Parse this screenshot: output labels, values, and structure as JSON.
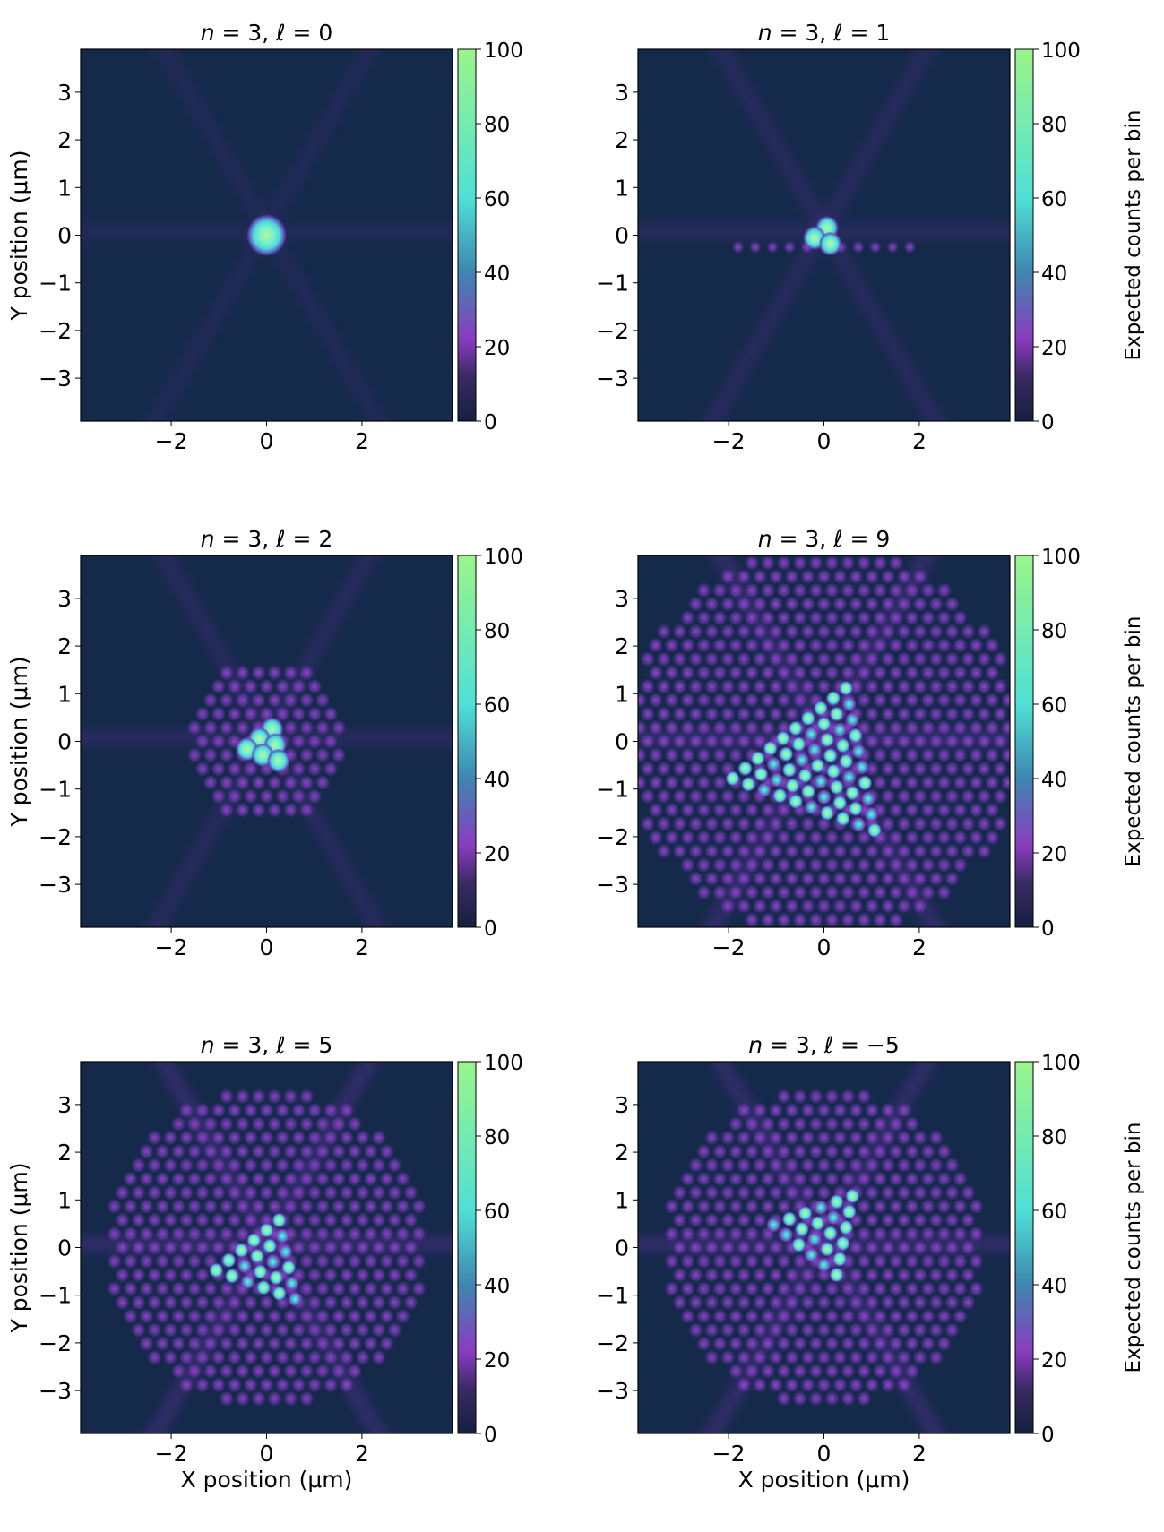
{
  "colors": {
    "background": "#15294a",
    "colorbar_stops": [
      "#14203f",
      "#3a2a63",
      "#8a3cc0",
      "#3e86b0",
      "#4fe0d6",
      "#9af58a"
    ]
  },
  "colorbar": {
    "ticks": [
      "0",
      "20",
      "40",
      "60",
      "80",
      "100"
    ],
    "label": "Expected counts per bin",
    "range": [
      0,
      100
    ]
  },
  "axes": {
    "xlabel": "X position (μm)",
    "ylabel": "Y position (μm)",
    "xticks": [
      "−2",
      "0",
      "2"
    ],
    "yticks": [
      "3",
      "2",
      "1",
      "0",
      "−1",
      "−2",
      "−3"
    ],
    "range": [
      -3.9,
      3.9
    ]
  },
  "chart_data": [
    {
      "type": "heatmap",
      "title_n": "n",
      "title_eq1": " = 3, ",
      "title_l": "ℓ",
      "title_eq2": " = 0",
      "l": 0,
      "xlim": [
        -3.9,
        3.9
      ],
      "ylim": [
        -3.9,
        3.9
      ],
      "clim": [
        0,
        100
      ]
    },
    {
      "type": "heatmap",
      "title_n": "n",
      "title_eq1": " = 3, ",
      "title_l": "ℓ",
      "title_eq2": " = 1",
      "l": 1,
      "xlim": [
        -3.9,
        3.9
      ],
      "ylim": [
        -3.9,
        3.9
      ],
      "clim": [
        0,
        100
      ]
    },
    {
      "type": "heatmap",
      "title_n": "n",
      "title_eq1": " = 3, ",
      "title_l": "ℓ",
      "title_eq2": " = 2",
      "l": 2,
      "xlim": [
        -3.9,
        3.9
      ],
      "ylim": [
        -3.9,
        3.9
      ],
      "clim": [
        0,
        100
      ]
    },
    {
      "type": "heatmap",
      "title_n": "n",
      "title_eq1": " = 3, ",
      "title_l": "ℓ",
      "title_eq2": " = 9",
      "l": 9,
      "xlim": [
        -3.9,
        3.9
      ],
      "ylim": [
        -3.9,
        3.9
      ],
      "clim": [
        0,
        100
      ]
    },
    {
      "type": "heatmap",
      "title_n": "n",
      "title_eq1": " = 3, ",
      "title_l": "ℓ",
      "title_eq2": " = 5",
      "l": 5,
      "xlim": [
        -3.9,
        3.9
      ],
      "ylim": [
        -3.9,
        3.9
      ],
      "clim": [
        0,
        100
      ]
    },
    {
      "type": "heatmap",
      "title_n": "n",
      "title_eq1": " = 3, ",
      "title_l": "ℓ",
      "title_eq2": " = −5",
      "l": -5,
      "xlim": [
        -3.9,
        3.9
      ],
      "ylim": [
        -3.9,
        3.9
      ],
      "clim": [
        0,
        100
      ]
    }
  ]
}
